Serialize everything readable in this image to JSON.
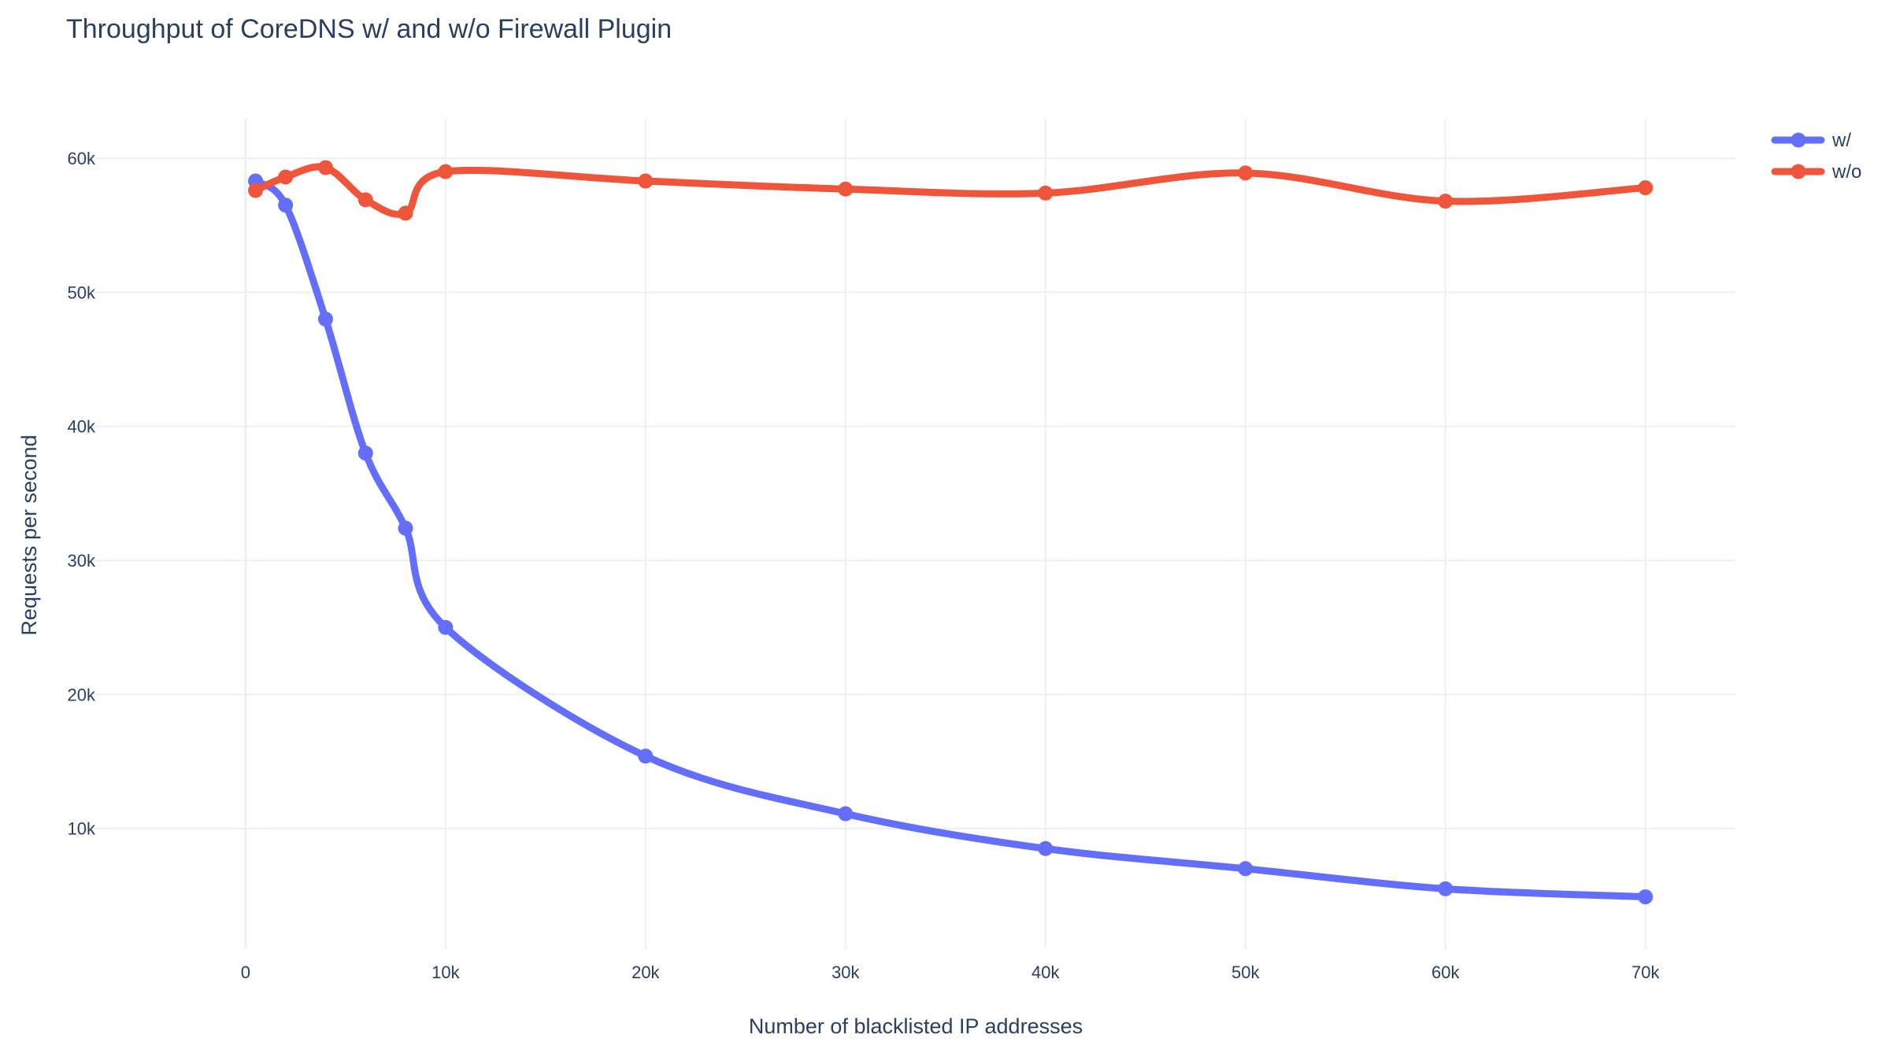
{
  "chart_data": {
    "type": "line",
    "title": "Throughput of CoreDNS w/ and w/o Firewall Plugin",
    "xlabel": "Number of blacklisted IP addresses",
    "ylabel": "Requests per second",
    "xlim": [
      -8500,
      74500
    ],
    "ylim": [
      1000,
      63000
    ],
    "x_ticks": [
      0,
      10000,
      20000,
      30000,
      40000,
      50000,
      60000,
      70000
    ],
    "x_tick_labels": [
      "0",
      "10k",
      "20k",
      "30k",
      "40k",
      "50k",
      "60k",
      "70k"
    ],
    "y_ticks": [
      10000,
      20000,
      30000,
      40000,
      50000,
      60000
    ],
    "y_tick_labels": [
      "10k",
      "20k",
      "30k",
      "40k",
      "50k",
      "60k"
    ],
    "grid": true,
    "legend_position": "top-right",
    "x": [
      500,
      2000,
      4000,
      6000,
      8000,
      10000,
      20000,
      30000,
      40000,
      50000,
      60000,
      70000
    ],
    "series": [
      {
        "name": "w/",
        "color": "#636efa",
        "values": [
          58300,
          56500,
          48000,
          38000,
          32400,
          25000,
          15400,
          11100,
          8500,
          7000,
          5500,
          4900
        ]
      },
      {
        "name": "w/o",
        "color": "#ef553b",
        "values": [
          57600,
          58600,
          59300,
          56900,
          55900,
          59000,
          58300,
          57700,
          57400,
          58900,
          56800,
          57800
        ]
      }
    ]
  }
}
